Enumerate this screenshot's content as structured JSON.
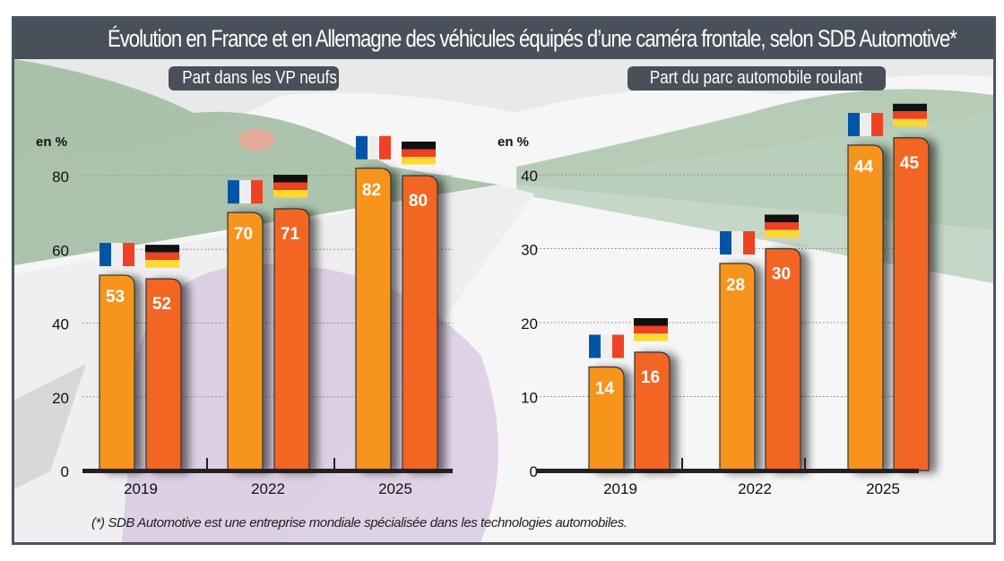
{
  "title": "Évolution en France et en Allemagne des véhicules équipés d’une caméra frontale, selon SDB Automotive*",
  "footnote": "(*) SDB Automotive est une entreprise mondiale spécialisée dans les technologies automobiles.",
  "colors": {
    "france_bar": "#f7941d",
    "germany_bar": "#f26522",
    "title_bg": "#4a5059",
    "frame": "#4a5560"
  },
  "legend_icons": [
    "france-flag-icon",
    "germany-flag-icon"
  ],
  "chart_data": [
    {
      "type": "bar",
      "title": "Part dans les VP neufs",
      "ylabel": "en %",
      "ylim": [
        0,
        80
      ],
      "yticks": [
        0,
        20,
        40,
        60,
        80
      ],
      "grid": true,
      "categories": [
        "2019",
        "2022",
        "2025"
      ],
      "series": [
        {
          "country": "France",
          "values": [
            53,
            70,
            82
          ]
        },
        {
          "country": "Allemagne",
          "values": [
            52,
            71,
            80
          ]
        }
      ]
    },
    {
      "type": "bar",
      "title": "Part du parc automobile roulant",
      "ylabel": "en %",
      "ylim": [
        0,
        40
      ],
      "yticks": [
        0,
        10,
        20,
        30,
        40
      ],
      "grid": true,
      "categories": [
        "2019",
        "2022",
        "2025"
      ],
      "series": [
        {
          "country": "France",
          "values": [
            14,
            28,
            44
          ]
        },
        {
          "country": "Allemagne",
          "values": [
            16,
            30,
            45
          ]
        }
      ]
    }
  ]
}
